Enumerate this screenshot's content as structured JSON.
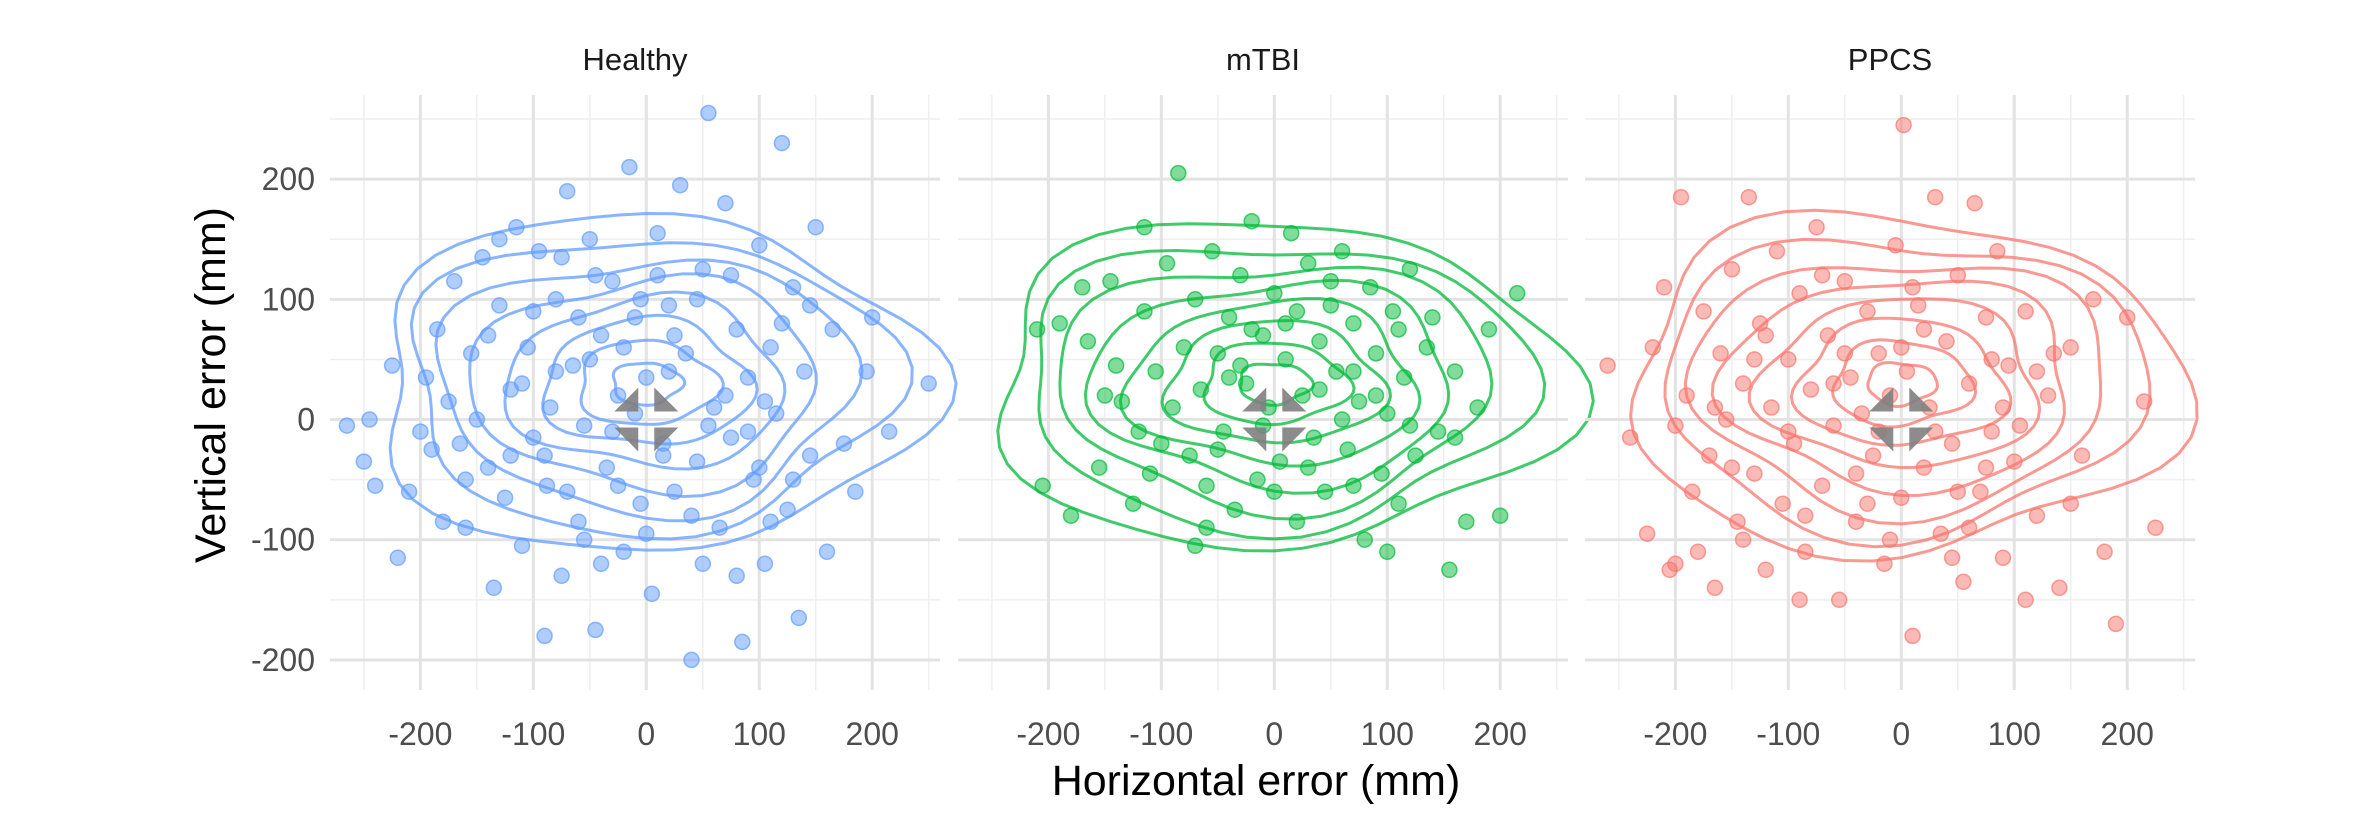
{
  "chart_data": {
    "type": "scatter",
    "subtype": "faceted scatter with 2D density contours",
    "xlabel": "Horizontal error (mm)",
    "ylabel": "Vertical error (mm)",
    "xlim": [
      -280,
      260
    ],
    "ylim": [
      -225,
      270
    ],
    "x_ticks": [
      -200,
      -100,
      0,
      100,
      200
    ],
    "y_ticks": [
      -200,
      -100,
      0,
      100,
      200
    ],
    "grid": true,
    "legend": "none",
    "facets": [
      {
        "name": "Healthy",
        "color": "#619CFF",
        "points": [
          [
            -265,
            -5
          ],
          [
            -250,
            -35
          ],
          [
            -245,
            0
          ],
          [
            -240,
            -55
          ],
          [
            -225,
            45
          ],
          [
            -220,
            -115
          ],
          [
            -210,
            -60
          ],
          [
            -195,
            35
          ],
          [
            -190,
            -25
          ],
          [
            -185,
            75
          ],
          [
            -180,
            -85
          ],
          [
            -175,
            15
          ],
          [
            -170,
            115
          ],
          [
            -165,
            -20
          ],
          [
            -160,
            -90
          ],
          [
            -155,
            55
          ],
          [
            -150,
            0
          ],
          [
            -145,
            135
          ],
          [
            -140,
            -40
          ],
          [
            -135,
            -140
          ],
          [
            -130,
            95
          ],
          [
            -125,
            -65
          ],
          [
            -120,
            25
          ],
          [
            -115,
            160
          ],
          [
            -110,
            -105
          ],
          [
            -105,
            60
          ],
          [
            -100,
            -15
          ],
          [
            -95,
            140
          ],
          [
            -90,
            -180
          ],
          [
            -88,
            -55
          ],
          [
            -85,
            10
          ],
          [
            -80,
            100
          ],
          [
            -75,
            -130
          ],
          [
            -70,
            190
          ],
          [
            -65,
            45
          ],
          [
            -60,
            -85
          ],
          [
            -55,
            -5
          ],
          [
            -50,
            150
          ],
          [
            -45,
            -175
          ],
          [
            -40,
            70
          ],
          [
            -35,
            -40
          ],
          [
            -30,
            115
          ],
          [
            -25,
            20
          ],
          [
            -20,
            -110
          ],
          [
            -15,
            210
          ],
          [
            -10,
            85
          ],
          [
            -5,
            -70
          ],
          [
            0,
            35
          ],
          [
            5,
            -145
          ],
          [
            10,
            155
          ],
          [
            15,
            -20
          ],
          [
            20,
            95
          ],
          [
            25,
            -60
          ],
          [
            30,
            195
          ],
          [
            35,
            55
          ],
          [
            40,
            -200
          ],
          [
            45,
            -35
          ],
          [
            50,
            125
          ],
          [
            55,
            255
          ],
          [
            60,
            10
          ],
          [
            65,
            -90
          ],
          [
            70,
            180
          ],
          [
            75,
            -15
          ],
          [
            80,
            75
          ],
          [
            85,
            -185
          ],
          [
            90,
            35
          ],
          [
            95,
            -50
          ],
          [
            100,
            145
          ],
          [
            105,
            -120
          ],
          [
            110,
            60
          ],
          [
            115,
            5
          ],
          [
            120,
            230
          ],
          [
            125,
            -75
          ],
          [
            130,
            110
          ],
          [
            135,
            -165
          ],
          [
            140,
            40
          ],
          [
            145,
            -30
          ],
          [
            150,
            160
          ],
          [
            160,
            -110
          ],
          [
            165,
            75
          ],
          [
            175,
            -20
          ],
          [
            185,
            -60
          ],
          [
            195,
            40
          ],
          [
            200,
            85
          ],
          [
            215,
            -10
          ],
          [
            250,
            30
          ],
          [
            -130,
            150
          ],
          [
            -110,
            30
          ],
          [
            -90,
            -30
          ],
          [
            -60,
            85
          ],
          [
            -40,
            -120
          ],
          [
            -20,
            60
          ],
          [
            10,
            120
          ],
          [
            40,
            -80
          ],
          [
            70,
            20
          ],
          [
            100,
            -40
          ],
          [
            -75,
            135
          ],
          [
            -50,
            50
          ],
          [
            -25,
            -55
          ],
          [
            0,
            -95
          ],
          [
            25,
            70
          ],
          [
            55,
            -5
          ],
          [
            80,
            -130
          ],
          [
            110,
            -85
          ],
          [
            -140,
            70
          ],
          [
            -100,
            90
          ],
          [
            -70,
            -60
          ],
          [
            -45,
            120
          ],
          [
            -10,
            5
          ],
          [
            15,
            -30
          ],
          [
            45,
            100
          ],
          [
            75,
            120
          ],
          [
            105,
            15
          ],
          [
            130,
            -50
          ],
          [
            -200,
            -10
          ],
          [
            -160,
            -50
          ],
          [
            -120,
            -30
          ],
          [
            -80,
            40
          ],
          [
            -55,
            -100
          ],
          [
            -30,
            -10
          ],
          [
            -5,
            100
          ],
          [
            20,
            40
          ],
          [
            50,
            -120
          ],
          [
            90,
            -10
          ],
          [
            120,
            80
          ],
          [
            145,
            95
          ]
        ]
      },
      {
        "name": "mTBI",
        "color": "#00BA38",
        "points": [
          [
            -210,
            75
          ],
          [
            -205,
            -55
          ],
          [
            -190,
            80
          ],
          [
            -180,
            -80
          ],
          [
            -165,
            65
          ],
          [
            -155,
            -40
          ],
          [
            -145,
            115
          ],
          [
            -135,
            15
          ],
          [
            -125,
            -70
          ],
          [
            -115,
            90
          ],
          [
            -105,
            40
          ],
          [
            -100,
            -20
          ],
          [
            -95,
            130
          ],
          [
            -85,
            205
          ],
          [
            -80,
            60
          ],
          [
            -75,
            -30
          ],
          [
            -70,
            100
          ],
          [
            -65,
            25
          ],
          [
            -60,
            -90
          ],
          [
            -55,
            140
          ],
          [
            -50,
            55
          ],
          [
            -45,
            -10
          ],
          [
            -40,
            85
          ],
          [
            -35,
            -75
          ],
          [
            -30,
            120
          ],
          [
            -25,
            30
          ],
          [
            -20,
            165
          ],
          [
            -15,
            -50
          ],
          [
            -10,
            70
          ],
          [
            -5,
            10
          ],
          [
            0,
            105
          ],
          [
            5,
            -35
          ],
          [
            10,
            50
          ],
          [
            15,
            155
          ],
          [
            20,
            -85
          ],
          [
            25,
            20
          ],
          [
            30,
            130
          ],
          [
            35,
            -15
          ],
          [
            40,
            65
          ],
          [
            45,
            -60
          ],
          [
            50,
            95
          ],
          [
            55,
            40
          ],
          [
            60,
            140
          ],
          [
            65,
            -25
          ],
          [
            70,
            80
          ],
          [
            75,
            15
          ],
          [
            80,
            -100
          ],
          [
            85,
            110
          ],
          [
            90,
            55
          ],
          [
            95,
            -45
          ],
          [
            100,
            5
          ],
          [
            105,
            90
          ],
          [
            110,
            -70
          ],
          [
            115,
            35
          ],
          [
            120,
            125
          ],
          [
            125,
            -30
          ],
          [
            135,
            60
          ],
          [
            145,
            -10
          ],
          [
            155,
            -125
          ],
          [
            160,
            40
          ],
          [
            170,
            -85
          ],
          [
            180,
            10
          ],
          [
            190,
            75
          ],
          [
            200,
            -80
          ],
          [
            215,
            105
          ],
          [
            -140,
            45
          ],
          [
            -120,
            -10
          ],
          [
            -90,
            10
          ],
          [
            -60,
            -55
          ],
          [
            -30,
            45
          ],
          [
            -10,
            -5
          ],
          [
            10,
            80
          ],
          [
            30,
            -40
          ],
          [
            60,
            0
          ],
          [
            90,
            20
          ],
          [
            120,
            -5
          ],
          [
            -115,
            160
          ],
          [
            -70,
            -105
          ],
          [
            -40,
            35
          ],
          [
            0,
            -60
          ],
          [
            20,
            90
          ],
          [
            50,
            115
          ],
          [
            70,
            40
          ],
          [
            100,
            -110
          ],
          [
            140,
            85
          ],
          [
            -170,
            110
          ],
          [
            -150,
            20
          ],
          [
            -110,
            -45
          ],
          [
            -50,
            -25
          ],
          [
            -20,
            75
          ],
          [
            40,
            25
          ],
          [
            70,
            -55
          ],
          [
            110,
            75
          ],
          [
            160,
            -15
          ]
        ]
      },
      {
        "name": "PPCS",
        "color": "#F8766D",
        "points": [
          [
            -260,
            45
          ],
          [
            -240,
            -15
          ],
          [
            -225,
            -95
          ],
          [
            -220,
            60
          ],
          [
            -210,
            110
          ],
          [
            -205,
            -125
          ],
          [
            -195,
            185
          ],
          [
            -190,
            20
          ],
          [
            -185,
            -60
          ],
          [
            -175,
            90
          ],
          [
            -170,
            -30
          ],
          [
            -165,
            -140
          ],
          [
            -160,
            55
          ],
          [
            -155,
            0
          ],
          [
            -150,
            125
          ],
          [
            -145,
            -85
          ],
          [
            -140,
            30
          ],
          [
            -135,
            185
          ],
          [
            -130,
            -45
          ],
          [
            -125,
            80
          ],
          [
            -120,
            -125
          ],
          [
            -115,
            10
          ],
          [
            -110,
            140
          ],
          [
            -105,
            -70
          ],
          [
            -100,
            50
          ],
          [
            -95,
            -20
          ],
          [
            -90,
            105
          ],
          [
            -85,
            -110
          ],
          [
            -80,
            25
          ],
          [
            -75,
            160
          ],
          [
            -70,
            -55
          ],
          [
            -65,
            70
          ],
          [
            -60,
            -5
          ],
          [
            -55,
            -150
          ],
          [
            -50,
            115
          ],
          [
            -45,
            35
          ],
          [
            -40,
            -85
          ],
          [
            -35,
            5
          ],
          [
            -30,
            90
          ],
          [
            -25,
            -30
          ],
          [
            -20,
            55
          ],
          [
            -15,
            -120
          ],
          [
            -10,
            20
          ],
          [
            -5,
            145
          ],
          [
            0,
            -65
          ],
          [
            2,
            245
          ],
          [
            5,
            40
          ],
          [
            10,
            -180
          ],
          [
            15,
            95
          ],
          [
            20,
            -40
          ],
          [
            25,
            10
          ],
          [
            30,
            185
          ],
          [
            35,
            -95
          ],
          [
            40,
            65
          ],
          [
            45,
            -20
          ],
          [
            50,
            120
          ],
          [
            55,
            -135
          ],
          [
            60,
            30
          ],
          [
            65,
            180
          ],
          [
            70,
            -60
          ],
          [
            75,
            85
          ],
          [
            80,
            -10
          ],
          [
            85,
            140
          ],
          [
            90,
            -115
          ],
          [
            95,
            45
          ],
          [
            100,
            -35
          ],
          [
            110,
            90
          ],
          [
            120,
            -80
          ],
          [
            130,
            20
          ],
          [
            140,
            -140
          ],
          [
            150,
            60
          ],
          [
            160,
            -30
          ],
          [
            170,
            100
          ],
          [
            180,
            -110
          ],
          [
            190,
            -170
          ],
          [
            200,
            85
          ],
          [
            215,
            15
          ],
          [
            225,
            -90
          ],
          [
            -200,
            -5
          ],
          [
            -150,
            -40
          ],
          [
            -120,
            70
          ],
          [
            -90,
            -150
          ],
          [
            -60,
            30
          ],
          [
            -30,
            -70
          ],
          [
            0,
            60
          ],
          [
            30,
            -10
          ],
          [
            60,
            -90
          ],
          [
            90,
            10
          ],
          [
            120,
            40
          ],
          [
            -180,
            -110
          ],
          [
            -140,
            -100
          ],
          [
            -100,
            -10
          ],
          [
            -70,
            120
          ],
          [
            -40,
            -45
          ],
          [
            -10,
            -100
          ],
          [
            20,
            75
          ],
          [
            50,
            -60
          ],
          [
            80,
            50
          ],
          [
            110,
            -150
          ],
          [
            150,
            -70
          ],
          [
            -165,
            10
          ],
          [
            -130,
            50
          ],
          [
            -85,
            -80
          ],
          [
            -50,
            55
          ],
          [
            -20,
            -10
          ],
          [
            10,
            110
          ],
          [
            45,
            -115
          ],
          [
            75,
            -40
          ],
          [
            105,
            -5
          ],
          [
            135,
            55
          ],
          [
            -200,
            -120
          ]
        ]
      }
    ]
  }
}
